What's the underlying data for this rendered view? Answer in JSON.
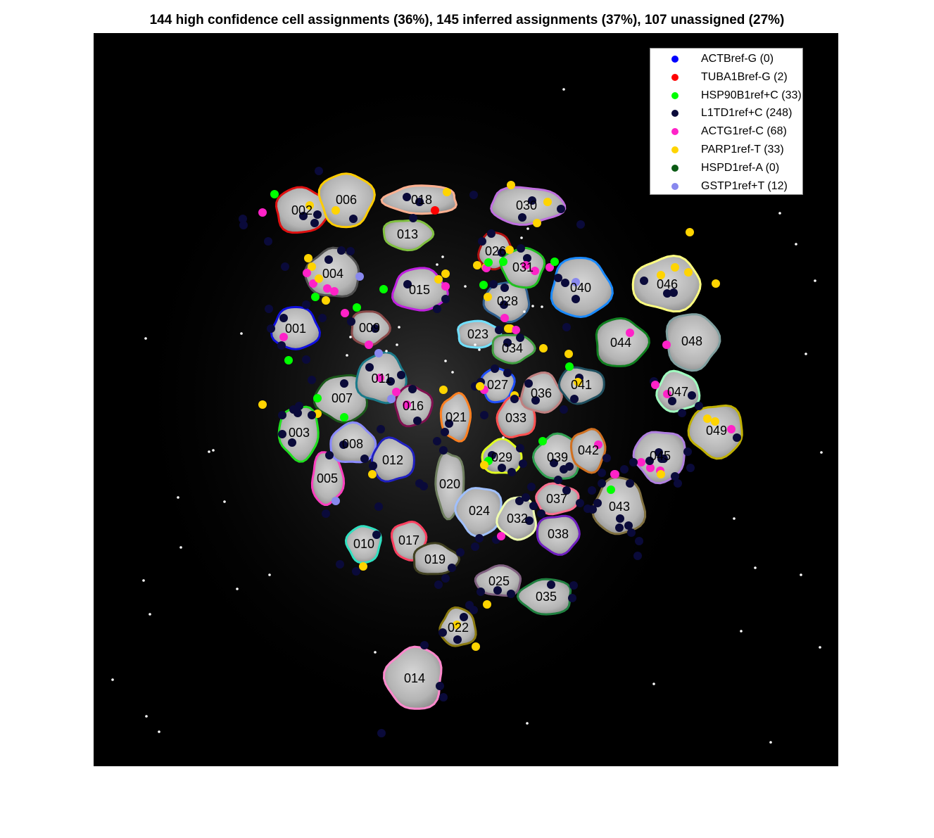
{
  "title": "144 high confidence cell assignments (36%), 145 inferred assignments (37%), 107 unassigned (27%)",
  "legend": [
    {
      "label": "ACTBref-G (0)",
      "color": "#0000ff"
    },
    {
      "label": "TUBA1Bref-G (2)",
      "color": "#ff0000"
    },
    {
      "label": "HSP90B1ref+C (33)",
      "color": "#00ff00"
    },
    {
      "label": "L1TD1ref+C (248)",
      "color": "#0a0a3a"
    },
    {
      "label": "ACTG1ref-C (68)",
      "color": "#ff22c8"
    },
    {
      "label": "PARP1ref-T (33)",
      "color": "#ffd400"
    },
    {
      "label": "HSPD1ref-A (0)",
      "color": "#0a5a14"
    },
    {
      "label": "GSTP1ref+T (12)",
      "color": "#8888ee"
    }
  ],
  "cells": [
    {
      "id": "001",
      "color": "#1010e0"
    },
    {
      "id": "002",
      "color": "#e01010"
    },
    {
      "id": "003",
      "color": "#20e020"
    },
    {
      "id": "004",
      "color": "#505050"
    },
    {
      "id": "005",
      "color": "#ff3fbf"
    },
    {
      "id": "006",
      "color": "#ffcc00"
    },
    {
      "id": "007",
      "color": "#1a5a1a"
    },
    {
      "id": "008",
      "color": "#8a8aff"
    },
    {
      "id": "009",
      "color": "#8b4a4a"
    },
    {
      "id": "010",
      "color": "#30e0c0"
    },
    {
      "id": "011",
      "color": "#1a7a8a"
    },
    {
      "id": "012",
      "color": "#2020c0"
    },
    {
      "id": "013",
      "color": "#80c040"
    },
    {
      "id": "014",
      "color": "#ff88cc"
    },
    {
      "id": "015",
      "color": "#c020e0"
    },
    {
      "id": "016",
      "color": "#801050"
    },
    {
      "id": "017",
      "color": "#ff4060"
    },
    {
      "id": "018",
      "color": "#ffb090"
    },
    {
      "id": "019",
      "color": "#404020"
    },
    {
      "id": "020",
      "color": "#708060"
    },
    {
      "id": "021",
      "color": "#ff8020"
    },
    {
      "id": "022",
      "color": "#8b7a10"
    },
    {
      "id": "023",
      "color": "#70e0ff"
    },
    {
      "id": "024",
      "color": "#a0c0ff"
    },
    {
      "id": "025",
      "color": "#806080"
    },
    {
      "id": "026",
      "color": "#b01010"
    },
    {
      "id": "027",
      "color": "#2050ff"
    },
    {
      "id": "028",
      "color": "#306090"
    },
    {
      "id": "029",
      "color": "#e0ff20"
    },
    {
      "id": "030",
      "color": "#c070e0"
    },
    {
      "id": "031",
      "color": "#20c020"
    },
    {
      "id": "032",
      "color": "#f0ffb0"
    },
    {
      "id": "033",
      "color": "#ff5050"
    },
    {
      "id": "034",
      "color": "#40a040"
    },
    {
      "id": "035",
      "color": "#208040"
    },
    {
      "id": "036",
      "color": "#c08080"
    },
    {
      "id": "037",
      "color": "#ff7090"
    },
    {
      "id": "038",
      "color": "#7020c0"
    },
    {
      "id": "039",
      "color": "#30a050"
    },
    {
      "id": "040",
      "color": "#1a8aff"
    },
    {
      "id": "041",
      "color": "#205060"
    },
    {
      "id": "042",
      "color": "#d07020"
    },
    {
      "id": "043",
      "color": "#807040"
    },
    {
      "id": "044",
      "color": "#108020"
    },
    {
      "id": "045",
      "color": "#b080e0"
    },
    {
      "id": "046",
      "color": "#ffff80"
    },
    {
      "id": "047",
      "color": "#a0ffc0"
    },
    {
      "id": "048",
      "color": "#80a0a0"
    },
    {
      "id": "049",
      "color": "#c0b000"
    }
  ]
}
